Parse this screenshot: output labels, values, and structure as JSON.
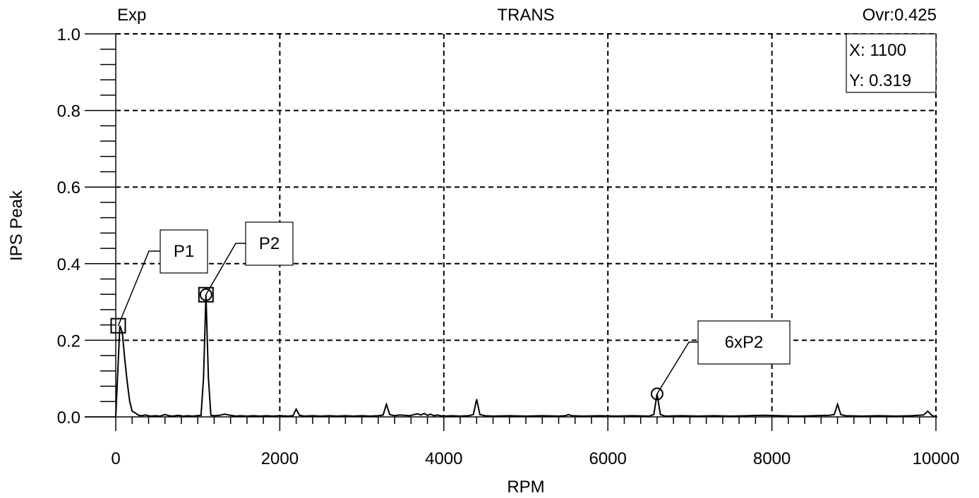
{
  "chart_data": {
    "type": "line",
    "title": "TRANS",
    "header_left": "Exp",
    "header_right": "Ovr:0.425",
    "xlabel": "RPM",
    "ylabel": "IPS Peak",
    "xlim": [
      0,
      10000
    ],
    "ylim": [
      0,
      1.0
    ],
    "x_ticks": [
      "0",
      "2000",
      "4000",
      "6000",
      "8000",
      "10000"
    ],
    "y_ticks": [
      "0.0",
      "0.2",
      "0.4",
      "0.6",
      "0.8",
      "1.0"
    ],
    "grid": true,
    "readout": {
      "x": "X: 1100",
      "y": "Y: 0.319"
    },
    "series": [
      {
        "x": [
          0,
          50,
          80,
          110,
          140,
          170,
          200,
          240,
          280,
          320,
          360,
          420,
          480,
          540,
          600,
          650,
          700,
          760,
          820,
          880,
          940,
          990,
          1040,
          1070,
          1100,
          1130,
          1160,
          1200,
          1260,
          1330,
          1400,
          1460,
          1520,
          1600,
          1680,
          1760,
          1840,
          1920,
          2000,
          2100,
          2160,
          2200,
          2240,
          2300,
          2400,
          2500,
          2600,
          2700,
          2800,
          2900,
          3000,
          3100,
          3200,
          3260,
          3300,
          3340,
          3400,
          3460,
          3520,
          3580,
          3640,
          3680,
          3720,
          3760,
          3800,
          3840,
          3880,
          3920,
          3960,
          4000,
          4100,
          4200,
          4300,
          4360,
          4400,
          4440,
          4500,
          4600,
          4800,
          5000,
          5200,
          5400,
          5480,
          5520,
          5560,
          5700,
          5900,
          6100,
          6300,
          6500,
          6560,
          6600,
          6640,
          6700,
          6900,
          7100,
          7300,
          7500,
          7700,
          7900,
          8100,
          8300,
          8500,
          8700,
          8760,
          8800,
          8840,
          8900,
          9100,
          9300,
          9500,
          9700,
          9850,
          9900,
          9950,
          10000
        ],
        "y": [
          0.0,
          0.238,
          0.22,
          0.15,
          0.09,
          0.04,
          0.015,
          0.01,
          0.004,
          0.003,
          0.005,
          0.002,
          0.003,
          0.002,
          0.006,
          0.003,
          0.002,
          0.004,
          0.002,
          0.003,
          0.002,
          0.003,
          0.004,
          0.1,
          0.319,
          0.1,
          0.004,
          0.003,
          0.004,
          0.007,
          0.004,
          0.002,
          0.003,
          0.002,
          0.003,
          0.002,
          0.003,
          0.002,
          0.003,
          0.002,
          0.003,
          0.02,
          0.004,
          0.002,
          0.003,
          0.002,
          0.003,
          0.002,
          0.003,
          0.002,
          0.003,
          0.002,
          0.003,
          0.005,
          0.033,
          0.006,
          0.003,
          0.005,
          0.004,
          0.003,
          0.006,
          0.008,
          0.005,
          0.009,
          0.004,
          0.007,
          0.003,
          0.005,
          0.003,
          0.002,
          0.003,
          0.002,
          0.003,
          0.006,
          0.046,
          0.006,
          0.003,
          0.002,
          0.003,
          0.002,
          0.003,
          0.002,
          0.003,
          0.006,
          0.003,
          0.002,
          0.003,
          0.002,
          0.003,
          0.002,
          0.006,
          0.06,
          0.006,
          0.002,
          0.003,
          0.002,
          0.003,
          0.002,
          0.003,
          0.004,
          0.003,
          0.002,
          0.003,
          0.004,
          0.006,
          0.033,
          0.006,
          0.003,
          0.002,
          0.003,
          0.002,
          0.003,
          0.005,
          0.015,
          0.004,
          0.0
        ]
      }
    ],
    "markers": [
      {
        "label": "P1",
        "x": 30,
        "y": 0.238,
        "shape": "square"
      },
      {
        "label": "P2",
        "x": 1100,
        "y": 0.319,
        "shape": "square-circle"
      },
      {
        "label": "6xP2",
        "x": 6600,
        "y": 0.06,
        "shape": "circle"
      }
    ]
  }
}
